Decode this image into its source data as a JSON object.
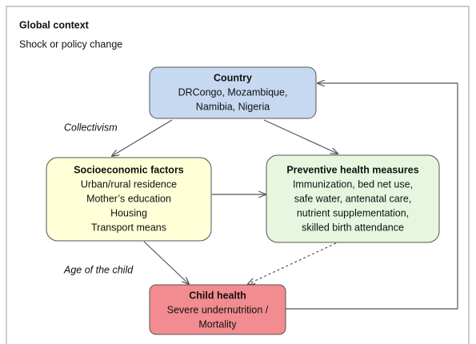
{
  "header": {
    "title": "Global context",
    "subtitle": "Shock or policy change"
  },
  "nodes": [
    {
      "title": "Country",
      "lines": [
        "DRCongo, Mozambique,",
        "Namibia, Nigeria"
      ]
    },
    {
      "title": "Socioeconomic factors",
      "lines": [
        "Urban/rural residence",
        "Mother’s education",
        "Housing",
        "Transport means"
      ]
    },
    {
      "title": "Preventive health measures",
      "lines": [
        "Immunization, bed net use,",
        "safe water, antenatal care,",
        "nutrient supplementation,",
        "skilled birth attendance"
      ]
    },
    {
      "title": "Child health",
      "lines": [
        "Severe undernutrition /",
        "Mortality"
      ]
    }
  ],
  "edge_labels": [
    "Collectivism",
    "Age of the child"
  ]
}
